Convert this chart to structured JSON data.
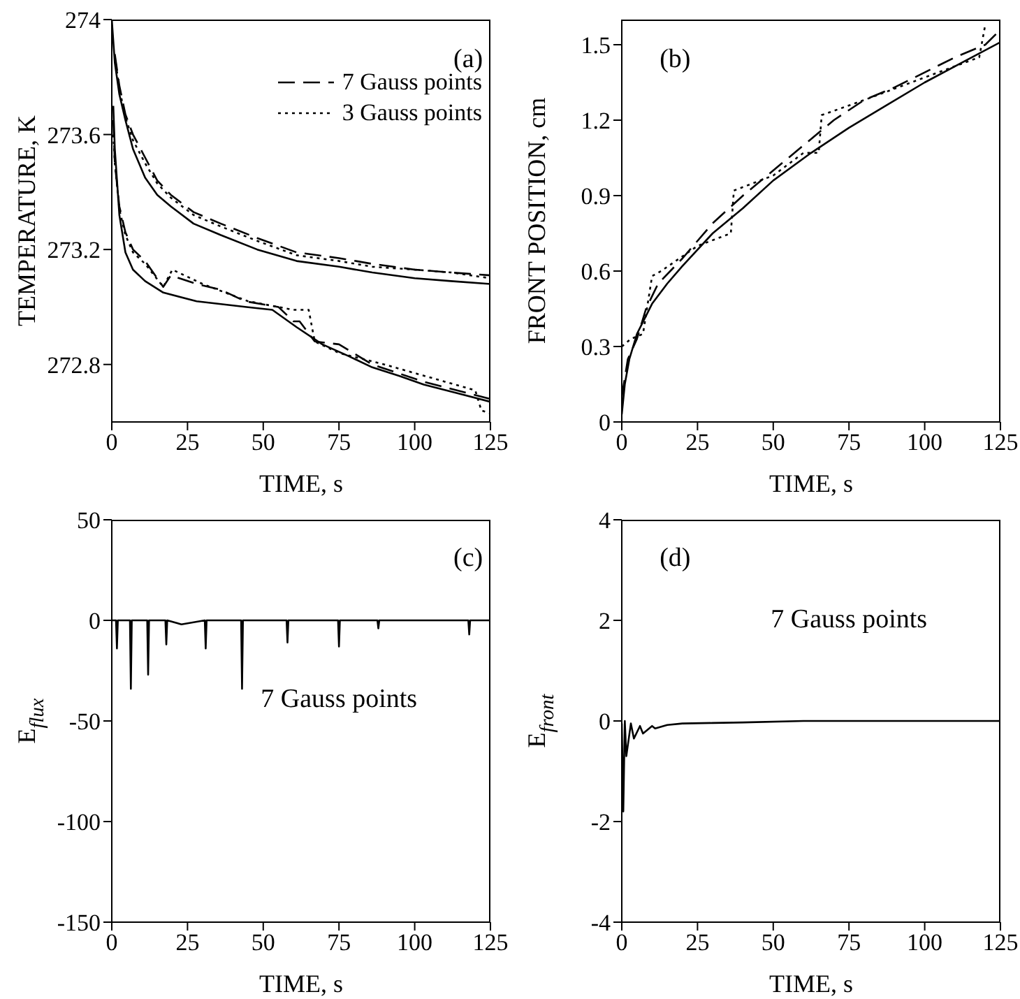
{
  "chart_data": [
    {
      "type": "line",
      "xlabel": "TIME, s",
      "ylabel": "TEMPERATURE, K",
      "xlim": [
        0,
        125
      ],
      "xticks": [
        0,
        25,
        50,
        75,
        100,
        125
      ],
      "ylim": [
        272.6,
        274
      ],
      "yticks": [
        272.8,
        273.2,
        273.6,
        274
      ],
      "legend": "top right",
      "annotations": [
        "(a)"
      ],
      "series": [
        {
          "color": "#000000",
          "line_style": "solid",
          "x": [
            0,
            1,
            2.5,
            4.5,
            7,
            11,
            15,
            19.5,
            27,
            36,
            48,
            61,
            75,
            86,
            100,
            112,
            125
          ],
          "values": [
            274,
            273.85,
            273.74,
            273.65,
            273.55,
            273.45,
            273.39,
            273.35,
            273.29,
            273.25,
            273.2,
            273.16,
            273.14,
            273.12,
            273.1,
            273.09,
            273.08
          ]
        },
        {
          "name": "7 Gauss points",
          "color": "#000000",
          "line_style": "dashed",
          "x": [
            1,
            2.5,
            4.5,
            7,
            11,
            15,
            19.5,
            27,
            36,
            48,
            61,
            75,
            86,
            100,
            112,
            125
          ],
          "values": [
            273.88,
            273.77,
            273.67,
            273.6,
            273.52,
            273.44,
            273.39,
            273.33,
            273.29,
            273.24,
            273.19,
            273.17,
            273.15,
            273.13,
            273.12,
            273.11
          ]
        },
        {
          "name": "3 Gauss points",
          "color": "#000000",
          "line_style": "dotted",
          "x": [
            1,
            2.5,
            4.5,
            7,
            11,
            15,
            19.5,
            27,
            36,
            48,
            61,
            75,
            86,
            100,
            112,
            125
          ],
          "values": [
            273.87,
            273.76,
            273.66,
            273.58,
            273.5,
            273.43,
            273.38,
            273.32,
            273.28,
            273.23,
            273.18,
            273.16,
            273.14,
            273.13,
            273.12,
            273.1
          ]
        },
        {
          "color": "#000000",
          "line_style": "solid",
          "x": [
            0.5,
            1,
            2.5,
            4.5,
            7,
            11,
            17,
            28,
            36,
            44.5,
            53,
            61,
            69.5,
            78,
            86,
            95,
            103,
            114,
            125
          ],
          "values": [
            273.7,
            273.55,
            273.32,
            273.19,
            273.13,
            273.09,
            273.05,
            273.02,
            273.01,
            273,
            272.99,
            272.93,
            272.87,
            272.83,
            272.79,
            272.76,
            272.73,
            272.7,
            272.67
          ]
        },
        {
          "color": "#000000",
          "line_style": "dashed",
          "x": [
            0.5,
            1,
            2.5,
            4.5,
            7,
            11,
            17,
            19.5,
            28,
            36,
            44,
            55,
            60,
            62,
            67,
            75,
            86,
            103,
            125
          ],
          "values": [
            273.65,
            273.5,
            273.35,
            273.26,
            273.2,
            273.16,
            273.07,
            273.11,
            273.08,
            273.06,
            273.02,
            273,
            272.95,
            272.95,
            272.88,
            272.87,
            272.8,
            272.74,
            272.68
          ]
        },
        {
          "color": "#000000",
          "line_style": "dotted",
          "x": [
            0.5,
            1,
            2.5,
            4.5,
            7,
            11,
            17,
            20,
            30,
            45,
            55,
            60,
            65,
            67,
            75,
            90,
            110,
            120,
            122,
            125
          ],
          "values": [
            273.6,
            273.5,
            273.34,
            273.25,
            273.19,
            273.15,
            273.07,
            273.13,
            273.08,
            273.02,
            273,
            272.99,
            272.99,
            272.88,
            272.84,
            272.8,
            272.74,
            272.71,
            272.64,
            272.63
          ]
        }
      ]
    },
    {
      "type": "line",
      "xlabel": "TIME, s",
      "ylabel": "FRONT POSITION, cm",
      "xlim": [
        0,
        125
      ],
      "xticks": [
        0,
        25,
        50,
        75,
        100,
        125
      ],
      "ylim": [
        0,
        1.6
      ],
      "yticks": [
        0,
        0.3,
        0.6,
        0.9,
        1.2,
        1.5
      ],
      "annotations": [
        "(b)"
      ],
      "series": [
        {
          "color": "#000000",
          "line_style": "solid",
          "x": [
            0,
            1,
            2.5,
            5,
            10,
            15,
            20,
            30,
            40,
            50,
            62.5,
            75,
            87.5,
            100,
            112.5,
            125
          ],
          "values": [
            0.03,
            0.15,
            0.25,
            0.35,
            0.47,
            0.55,
            0.62,
            0.75,
            0.85,
            0.96,
            1.07,
            1.17,
            1.26,
            1.35,
            1.43,
            1.51
          ]
        },
        {
          "color": "#000000",
          "line_style": "dashed",
          "x": [
            0,
            2,
            5,
            8,
            12,
            20,
            30,
            40,
            50,
            60,
            70,
            80,
            90,
            100,
            110,
            120,
            125
          ],
          "values": [
            0.1,
            0.25,
            0.33,
            0.45,
            0.55,
            0.65,
            0.79,
            0.9,
            1,
            1.1,
            1.2,
            1.28,
            1.33,
            1.39,
            1.45,
            1.5,
            1.56
          ]
        },
        {
          "color": "#000000",
          "line_style": "dotted",
          "x": [
            0,
            3,
            7,
            10,
            13,
            25,
            36,
            37,
            50,
            60,
            65,
            66,
            80,
            100,
            118,
            120
          ],
          "values": [
            0.3,
            0.33,
            0.35,
            0.58,
            0.6,
            0.7,
            0.75,
            0.92,
            0.98,
            1.07,
            1.07,
            1.22,
            1.28,
            1.37,
            1.45,
            1.58
          ]
        }
      ]
    },
    {
      "type": "line",
      "xlabel": "TIME, s",
      "ylabel": "E$_{flux}$",
      "xlim": [
        0,
        125
      ],
      "xticks": [
        0,
        25,
        50,
        75,
        100,
        125
      ],
      "ylim": [
        -150,
        50
      ],
      "yticks": [
        -150,
        -100,
        -50,
        0,
        50
      ],
      "annotations": [
        "(c)",
        "7 Gauss points"
      ],
      "series": [
        {
          "color": "#000000",
          "line_style": "solid",
          "x": [
            0,
            1.4,
            1.7,
            2,
            6,
            6.3,
            6.6,
            11.7,
            12,
            12.3,
            17.7,
            18,
            18.3,
            23,
            30.7,
            31,
            31.3,
            42.7,
            43,
            43.3,
            57.7,
            58,
            58.3,
            74.7,
            75,
            75.3,
            87.7,
            88,
            88.3,
            117.7,
            118,
            118.3,
            125
          ],
          "values": [
            0,
            0,
            -14,
            0,
            0,
            -34,
            0,
            0,
            -27,
            0,
            0,
            -12,
            0,
            -2,
            0,
            -14,
            0,
            0,
            -34,
            0,
            0,
            -11,
            0,
            0,
            -13,
            0,
            0,
            -4,
            0,
            0,
            -7,
            0,
            0
          ]
        }
      ]
    },
    {
      "type": "line",
      "xlabel": "TIME, s",
      "ylabel": "E$_{front}$",
      "xlim": [
        0,
        125
      ],
      "xticks": [
        0,
        25,
        50,
        75,
        100,
        125
      ],
      "ylim": [
        -4,
        4
      ],
      "yticks": [
        -4,
        -2,
        0,
        2,
        4
      ],
      "annotations": [
        "(d)",
        "7 Gauss points"
      ],
      "series": [
        {
          "color": "#000000",
          "line_style": "solid",
          "x": [
            0,
            0.5,
            1,
            1.5,
            3,
            4,
            6,
            7,
            10,
            11,
            15,
            20,
            30,
            40,
            60,
            90,
            125
          ],
          "values": [
            -0.05,
            -1.8,
            0,
            -0.7,
            -0.05,
            -0.35,
            -0.1,
            -0.25,
            -0.1,
            -0.15,
            -0.08,
            -0.05,
            -0.04,
            -0.03,
            0,
            0,
            0
          ]
        }
      ]
    }
  ]
}
